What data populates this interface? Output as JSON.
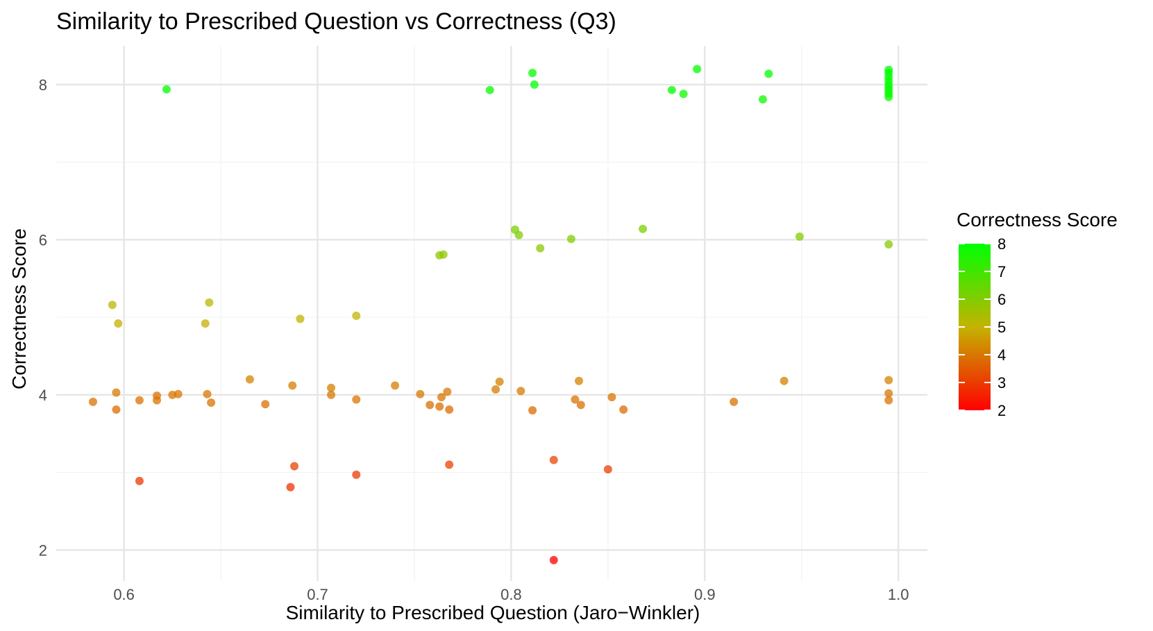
{
  "chart_data": {
    "type": "scatter",
    "title": "Similarity to Prescribed Question vs Correctness (Q3)",
    "xlabel": "Similarity to Prescribed Question (Jaro−Winkler)",
    "ylabel": "Correctness Score",
    "xlim": [
      0.565,
      1.015
    ],
    "ylim": [
      1.6,
      8.5
    ],
    "x_ticks": [
      0.6,
      0.7,
      0.8,
      0.9,
      1.0
    ],
    "x_tick_labels": [
      "0.6",
      "0.7",
      "0.8",
      "0.9",
      "1.0"
    ],
    "y_ticks": [
      2,
      4,
      6,
      8
    ],
    "y_tick_labels": [
      "2",
      "4",
      "6",
      "8"
    ],
    "grid": true,
    "legend": {
      "title": "Correctness Score",
      "placement": "right",
      "ticks": [
        "8",
        "7",
        "6",
        "5",
        "4",
        "3",
        "2"
      ],
      "range": [
        2,
        8
      ],
      "color_low": "#ff0000",
      "color_high": "#00ff00"
    },
    "points": [
      {
        "x": 0.622,
        "y": 7.94
      },
      {
        "x": 0.789,
        "y": 7.93
      },
      {
        "x": 0.811,
        "y": 8.15
      },
      {
        "x": 0.812,
        "y": 8.0
      },
      {
        "x": 0.883,
        "y": 7.93
      },
      {
        "x": 0.889,
        "y": 7.88
      },
      {
        "x": 0.896,
        "y": 8.2
      },
      {
        "x": 0.93,
        "y": 7.81
      },
      {
        "x": 0.933,
        "y": 8.14
      },
      {
        "x": 0.995,
        "y": 8.19
      },
      {
        "x": 0.995,
        "y": 8.15
      },
      {
        "x": 0.995,
        "y": 8.1
      },
      {
        "x": 0.995,
        "y": 8.05
      },
      {
        "x": 0.995,
        "y": 8.0
      },
      {
        "x": 0.995,
        "y": 7.96
      },
      {
        "x": 0.995,
        "y": 7.92
      },
      {
        "x": 0.995,
        "y": 7.88
      },
      {
        "x": 0.995,
        "y": 7.84
      },
      {
        "x": 0.763,
        "y": 5.8
      },
      {
        "x": 0.765,
        "y": 5.81
      },
      {
        "x": 0.802,
        "y": 6.13
      },
      {
        "x": 0.804,
        "y": 6.06
      },
      {
        "x": 0.815,
        "y": 5.89
      },
      {
        "x": 0.831,
        "y": 6.01
      },
      {
        "x": 0.868,
        "y": 6.14
      },
      {
        "x": 0.949,
        "y": 6.04
      },
      {
        "x": 0.995,
        "y": 5.94
      },
      {
        "x": 0.594,
        "y": 5.16
      },
      {
        "x": 0.597,
        "y": 4.92
      },
      {
        "x": 0.642,
        "y": 4.92
      },
      {
        "x": 0.644,
        "y": 5.19
      },
      {
        "x": 0.691,
        "y": 4.98
      },
      {
        "x": 0.72,
        "y": 5.02
      },
      {
        "x": 0.584,
        "y": 3.91
      },
      {
        "x": 0.596,
        "y": 4.03
      },
      {
        "x": 0.596,
        "y": 3.81
      },
      {
        "x": 0.608,
        "y": 3.93
      },
      {
        "x": 0.617,
        "y": 3.99
      },
      {
        "x": 0.617,
        "y": 3.93
      },
      {
        "x": 0.625,
        "y": 4.0
      },
      {
        "x": 0.628,
        "y": 4.01
      },
      {
        "x": 0.643,
        "y": 4.01
      },
      {
        "x": 0.645,
        "y": 3.9
      },
      {
        "x": 0.665,
        "y": 4.2
      },
      {
        "x": 0.673,
        "y": 3.88
      },
      {
        "x": 0.687,
        "y": 4.12
      },
      {
        "x": 0.707,
        "y": 4.09
      },
      {
        "x": 0.707,
        "y": 4.0
      },
      {
        "x": 0.72,
        "y": 3.94
      },
      {
        "x": 0.74,
        "y": 4.12
      },
      {
        "x": 0.753,
        "y": 4.01
      },
      {
        "x": 0.758,
        "y": 3.87
      },
      {
        "x": 0.763,
        "y": 3.85
      },
      {
        "x": 0.764,
        "y": 3.97
      },
      {
        "x": 0.767,
        "y": 4.04
      },
      {
        "x": 0.768,
        "y": 3.81
      },
      {
        "x": 0.792,
        "y": 4.07
      },
      {
        "x": 0.794,
        "y": 4.17
      },
      {
        "x": 0.805,
        "y": 4.05
      },
      {
        "x": 0.811,
        "y": 3.8
      },
      {
        "x": 0.833,
        "y": 3.94
      },
      {
        "x": 0.835,
        "y": 4.18
      },
      {
        "x": 0.836,
        "y": 3.87
      },
      {
        "x": 0.852,
        "y": 3.97
      },
      {
        "x": 0.858,
        "y": 3.81
      },
      {
        "x": 0.915,
        "y": 3.91
      },
      {
        "x": 0.941,
        "y": 4.18
      },
      {
        "x": 0.995,
        "y": 4.19
      },
      {
        "x": 0.995,
        "y": 4.02
      },
      {
        "x": 0.995,
        "y": 3.93
      },
      {
        "x": 0.608,
        "y": 2.89
      },
      {
        "x": 0.686,
        "y": 2.81
      },
      {
        "x": 0.688,
        "y": 3.08
      },
      {
        "x": 0.72,
        "y": 2.97
      },
      {
        "x": 0.768,
        "y": 3.1
      },
      {
        "x": 0.822,
        "y": 3.16
      },
      {
        "x": 0.85,
        "y": 3.04
      },
      {
        "x": 0.822,
        "y": 1.87
      }
    ]
  }
}
